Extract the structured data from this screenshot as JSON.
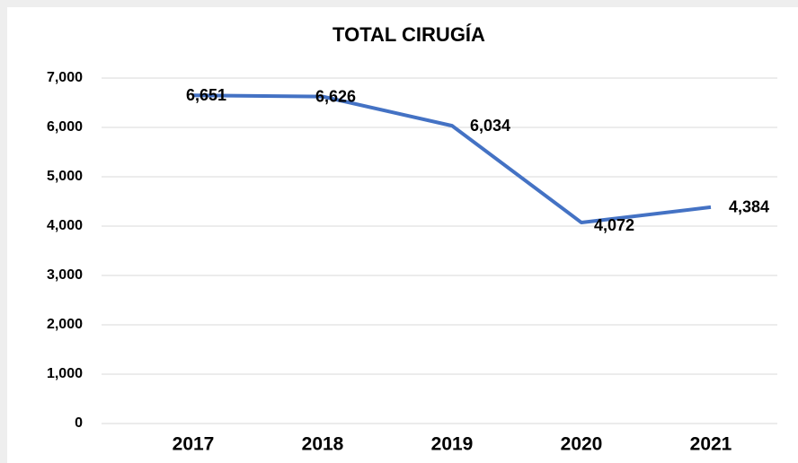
{
  "chart_data": {
    "type": "line",
    "title": "TOTAL CIRUGÍA",
    "categories": [
      "2017",
      "2018",
      "2019",
      "2020",
      "2021"
    ],
    "series": [
      {
        "name": "TOTAL CIRUGÍA",
        "color": "#4472c4",
        "values": [
          6651,
          6626,
          6034,
          4072,
          4384
        ],
        "value_labels": [
          "6,651",
          "6,626",
          "6,034",
          "4,072",
          "4,384"
        ]
      }
    ],
    "ylim": [
      0,
      7000
    ],
    "yticks": [
      0,
      {
        "value": 1000,
        "label": "1,000"
      },
      {
        "value": 2000,
        "label": "2,000"
      },
      {
        "value": 3000,
        "label": "3,000"
      },
      {
        "value": 4000,
        "label": "4,000"
      },
      {
        "value": 5000,
        "label": "5,000"
      },
      {
        "value": 6000,
        "label": "6,000"
      },
      {
        "value": 7000,
        "label": "7,000"
      }
    ],
    "grid": true
  }
}
